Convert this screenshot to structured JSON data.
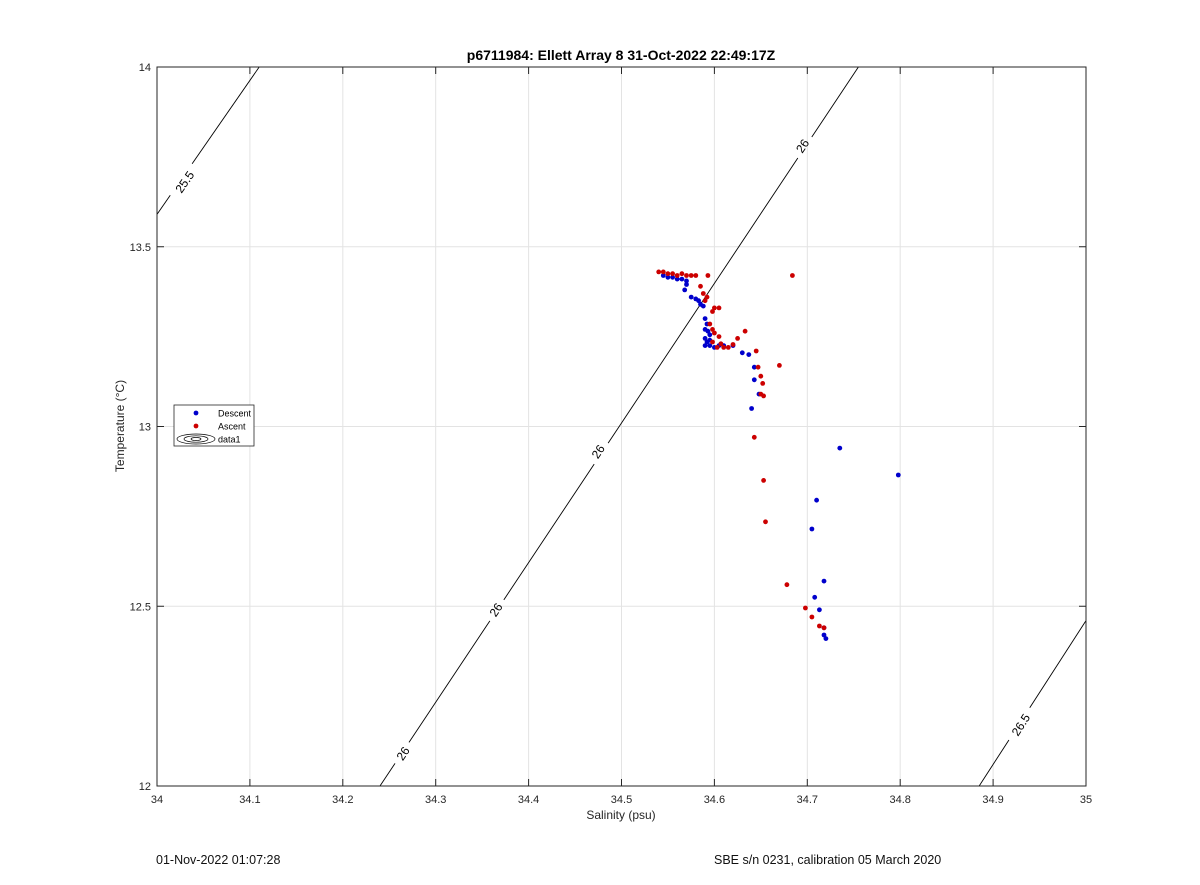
{
  "chart_data": {
    "type": "scatter",
    "title": "p6711984: Ellett Array 8 31-Oct-2022 22:49:17Z",
    "xlabel": "Salinity (psu)",
    "ylabel": "Temperature (°C)",
    "xlim": [
      34,
      35
    ],
    "ylim": [
      12,
      14
    ],
    "x_ticks": [
      "34",
      "34.1",
      "34.2",
      "34.3",
      "34.4",
      "34.5",
      "34.6",
      "34.7",
      "34.8",
      "34.9",
      "35"
    ],
    "y_ticks": [
      "12",
      "12.5",
      "13",
      "13.5",
      "14"
    ],
    "grid": true,
    "legend_position": "left",
    "legend": [
      {
        "label": "Descent",
        "color": "#0000cc",
        "marker": "dot"
      },
      {
        "label": "Ascent",
        "color": "#cc0000",
        "marker": "dot"
      },
      {
        "label": "data1",
        "color": "#000000",
        "marker": "contour"
      }
    ],
    "contours": [
      {
        "level": "25.5",
        "points": [
          [
            34.0,
            13.59
          ],
          [
            34.11,
            14.0
          ]
        ],
        "labels": [
          {
            "text": "25.5",
            "x": 34.03,
            "y": 13.68
          }
        ]
      },
      {
        "level": "26",
        "points": [
          [
            34.24,
            12.0
          ],
          [
            34.755,
            14.0
          ]
        ],
        "labels": [
          {
            "text": "26",
            "x": 34.265,
            "y": 12.09
          },
          {
            "text": "26",
            "x": 34.365,
            "y": 12.49
          },
          {
            "text": "26",
            "x": 34.475,
            "y": 12.93
          },
          {
            "text": "26",
            "x": 34.695,
            "y": 13.78
          }
        ]
      },
      {
        "level": "26.5",
        "points": [
          [
            34.885,
            12.0
          ],
          [
            35.0,
            12.46
          ]
        ],
        "labels": [
          {
            "text": "26.5",
            "x": 34.93,
            "y": 12.17
          }
        ]
      }
    ],
    "series": [
      {
        "name": "Descent",
        "color": "#0000cc",
        "points": [
          [
            34.545,
            13.42
          ],
          [
            34.55,
            13.415
          ],
          [
            34.555,
            13.415
          ],
          [
            34.56,
            13.41
          ],
          [
            34.565,
            13.41
          ],
          [
            34.57,
            13.405
          ],
          [
            34.57,
            13.395
          ],
          [
            34.568,
            13.38
          ],
          [
            34.575,
            13.36
          ],
          [
            34.58,
            13.355
          ],
          [
            34.583,
            13.35
          ],
          [
            34.585,
            13.34
          ],
          [
            34.588,
            13.335
          ],
          [
            34.59,
            13.3
          ],
          [
            34.592,
            13.285
          ],
          [
            34.59,
            13.27
          ],
          [
            34.593,
            13.265
          ],
          [
            34.595,
            13.255
          ],
          [
            34.59,
            13.245
          ],
          [
            34.595,
            13.24
          ],
          [
            34.592,
            13.235
          ],
          [
            34.59,
            13.225
          ],
          [
            34.595,
            13.225
          ],
          [
            34.6,
            13.22
          ],
          [
            34.605,
            13.225
          ],
          [
            34.61,
            13.225
          ],
          [
            34.62,
            13.225
          ],
          [
            34.63,
            13.205
          ],
          [
            34.637,
            13.2
          ],
          [
            34.643,
            13.165
          ],
          [
            34.643,
            13.13
          ],
          [
            34.648,
            13.09
          ],
          [
            34.64,
            13.05
          ],
          [
            34.735,
            12.94
          ],
          [
            34.798,
            12.865
          ],
          [
            34.71,
            12.795
          ],
          [
            34.705,
            12.715
          ],
          [
            34.718,
            12.57
          ],
          [
            34.708,
            12.525
          ],
          [
            34.713,
            12.49
          ],
          [
            34.718,
            12.44
          ],
          [
            34.718,
            12.42
          ],
          [
            34.72,
            12.41
          ]
        ]
      },
      {
        "name": "Ascent",
        "color": "#cc0000",
        "points": [
          [
            34.54,
            13.43
          ],
          [
            34.545,
            13.43
          ],
          [
            34.55,
            13.425
          ],
          [
            34.555,
            13.425
          ],
          [
            34.56,
            13.42
          ],
          [
            34.565,
            13.425
          ],
          [
            34.57,
            13.42
          ],
          [
            34.575,
            13.42
          ],
          [
            34.58,
            13.42
          ],
          [
            34.593,
            13.42
          ],
          [
            34.684,
            13.42
          ],
          [
            34.585,
            13.39
          ],
          [
            34.588,
            13.37
          ],
          [
            34.592,
            13.36
          ],
          [
            34.59,
            13.35
          ],
          [
            34.6,
            13.33
          ],
          [
            34.605,
            13.33
          ],
          [
            34.598,
            13.32
          ],
          [
            34.595,
            13.285
          ],
          [
            34.598,
            13.27
          ],
          [
            34.6,
            13.26
          ],
          [
            34.633,
            13.265
          ],
          [
            34.605,
            13.25
          ],
          [
            34.625,
            13.245
          ],
          [
            34.598,
            13.235
          ],
          [
            34.607,
            13.23
          ],
          [
            34.62,
            13.228
          ],
          [
            34.603,
            13.22
          ],
          [
            34.61,
            13.22
          ],
          [
            34.615,
            13.22
          ],
          [
            34.645,
            13.21
          ],
          [
            34.67,
            13.17
          ],
          [
            34.647,
            13.165
          ],
          [
            34.65,
            13.14
          ],
          [
            34.652,
            13.12
          ],
          [
            34.65,
            13.09
          ],
          [
            34.653,
            13.085
          ],
          [
            34.643,
            12.97
          ],
          [
            34.653,
            12.85
          ],
          [
            34.655,
            12.735
          ],
          [
            34.678,
            12.56
          ],
          [
            34.698,
            12.495
          ],
          [
            34.705,
            12.47
          ],
          [
            34.713,
            12.445
          ],
          [
            34.718,
            12.44
          ]
        ]
      }
    ]
  },
  "footer": {
    "timestamp": "01-Nov-2022 01:07:28",
    "sensor": "SBE s/n 0231, calibration 05 March 2020"
  }
}
